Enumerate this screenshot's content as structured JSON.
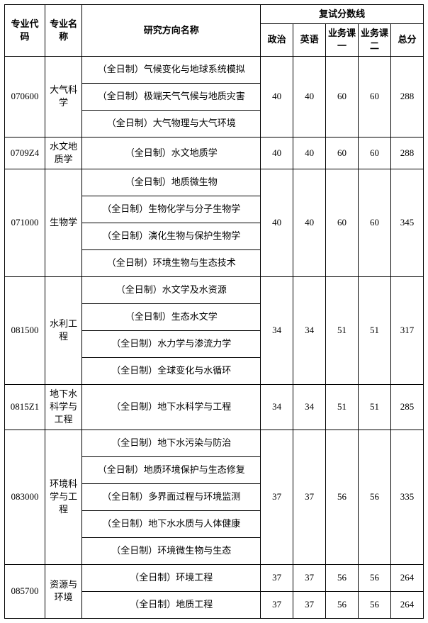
{
  "headers": {
    "code": "专业代码",
    "name": "专业名称",
    "direction": "研究方向名称",
    "scoreGroup": "复试分数线",
    "politics": "政治",
    "english": "英语",
    "course1": "业务课一",
    "course2": "业务课二",
    "total": "总分"
  },
  "rows": [
    {
      "code": "070600",
      "name": "大气科学",
      "directions": [
        "（全日制）气候变化与地球系统模拟",
        "（全日制）极端天气气候与地质灾害",
        "（全日制）大气物理与大气环境"
      ],
      "scores": [
        {
          "p": "40",
          "e": "40",
          "c1": "60",
          "c2": "60",
          "t": "288",
          "span": 3
        }
      ]
    },
    {
      "code": "0709Z4",
      "name": "水文地质学",
      "directions": [
        "（全日制）水文地质学"
      ],
      "scores": [
        {
          "p": "40",
          "e": "40",
          "c1": "60",
          "c2": "60",
          "t": "288",
          "span": 1
        }
      ]
    },
    {
      "code": "071000",
      "name": "生物学",
      "directions": [
        "（全日制）地质微生物",
        "（全日制）生物化学与分子生物学",
        "（全日制）演化生物与保护生物学",
        "（全日制）环境生物与生态技术"
      ],
      "scores": [
        {
          "p": "40",
          "e": "40",
          "c1": "60",
          "c2": "60",
          "t": "345",
          "span": 4
        }
      ]
    },
    {
      "code": "081500",
      "name": "水利工程",
      "directions": [
        "（全日制）水文学及水资源",
        "（全日制）生态水文学",
        "（全日制）水力学与渗流力学",
        "（全日制）全球变化与水循环"
      ],
      "scores": [
        {
          "p": "34",
          "e": "34",
          "c1": "51",
          "c2": "51",
          "t": "317",
          "span": 4
        }
      ]
    },
    {
      "code": "0815Z1",
      "name": "地下水科学与工程",
      "directions": [
        "（全日制）地下水科学与工程"
      ],
      "scores": [
        {
          "p": "34",
          "e": "34",
          "c1": "51",
          "c2": "51",
          "t": "285",
          "span": 1
        }
      ]
    },
    {
      "code": "083000",
      "name": "环境科学与工程",
      "directions": [
        "（全日制）地下水污染与防治",
        "（全日制）地质环境保护与生态修复",
        "（全日制）多界面过程与环境监测",
        "（全日制）地下水水质与人体健康",
        "（全日制）环境微生物与生态"
      ],
      "scores": [
        {
          "p": "37",
          "e": "37",
          "c1": "56",
          "c2": "56",
          "t": "335",
          "span": 5
        }
      ]
    },
    {
      "code": "085700",
      "name": "资源与环境",
      "directions": [
        "（全日制）环境工程",
        "（全日制）地质工程"
      ],
      "scores": [
        {
          "p": "37",
          "e": "37",
          "c1": "56",
          "c2": "56",
          "t": "264",
          "span": 1
        },
        {
          "p": "37",
          "e": "37",
          "c1": "56",
          "c2": "56",
          "t": "264",
          "span": 1
        }
      ]
    }
  ],
  "style": {
    "borderColor": "#000000",
    "background": "#ffffff",
    "fontFamily": "SimSun",
    "fontSize": 13,
    "tableWidth": 592
  }
}
